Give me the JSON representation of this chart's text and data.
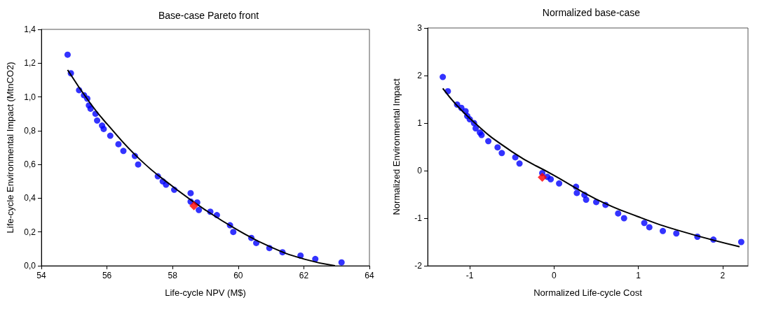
{
  "chart_data": [
    {
      "type": "scatter",
      "title": "Base-case Pareto front",
      "xlabel": "Life-cycle NPV (M$)",
      "ylabel": "Life-cycle Environmental Impact (MtnCO2)",
      "xlim": [
        54,
        64
      ],
      "xticks": [
        54,
        56,
        58,
        60,
        62,
        64
      ],
      "ylim": [
        0,
        1.4
      ],
      "yticks": [
        {
          "value": 0,
          "label": "0,0"
        },
        {
          "value": 0.2,
          "label": "0,2"
        },
        {
          "value": 0.4,
          "label": "0,4"
        },
        {
          "value": 0.6,
          "label": "0,6"
        },
        {
          "value": 0.8,
          "label": "0,8"
        },
        {
          "value": 1.0,
          "label": "1,0"
        },
        {
          "value": 1.2,
          "label": "1,2"
        },
        {
          "value": 1.4,
          "label": "1,4"
        }
      ],
      "grid": false,
      "series": [
        {
          "type": "scatter",
          "marker": "circle",
          "color": "#0000ff",
          "x": [
            54.8,
            54.9,
            55.15,
            55.3,
            55.4,
            55.45,
            55.5,
            55.65,
            55.7,
            55.85,
            55.9,
            56.1,
            56.35,
            56.5,
            56.85,
            56.95,
            57.55,
            57.7,
            57.8,
            58.05,
            58.55,
            58.55,
            58.75,
            58.8,
            59.15,
            59.35,
            59.75,
            59.85,
            60.4,
            60.55,
            60.95,
            61.35,
            61.9,
            62.35,
            63.15
          ],
          "values": [
            1.25,
            1.14,
            1.04,
            1.01,
            0.99,
            0.95,
            0.93,
            0.9,
            0.86,
            0.83,
            0.81,
            0.77,
            0.72,
            0.68,
            0.65,
            0.6,
            0.53,
            0.5,
            0.48,
            0.45,
            0.43,
            0.38,
            0.375,
            0.33,
            0.32,
            0.3,
            0.24,
            0.2,
            0.165,
            0.135,
            0.105,
            0.08,
            0.06,
            0.04,
            0.02
          ]
        },
        {
          "type": "line",
          "marker": "none",
          "color": "#000000",
          "x": [
            54.8,
            55.5,
            56,
            57,
            58,
            59,
            60,
            61,
            62,
            62.95
          ],
          "values": [
            1.16,
            0.96,
            0.84,
            0.63,
            0.47,
            0.33,
            0.21,
            0.11,
            0.04,
            0
          ]
        },
        {
          "type": "scatter",
          "marker": "diamond",
          "color": "#ff0000",
          "x": [
            58.65
          ],
          "values": [
            0.355
          ]
        }
      ]
    },
    {
      "type": "scatter",
      "title": "Normalized base-case",
      "xlabel": "Normalized Life-cycle Cost",
      "ylabel": "Normalized Environmental Impact",
      "xlim": [
        -1.5,
        2.3
      ],
      "xticks": [
        -1,
        0,
        1,
        2
      ],
      "ylim": [
        -2,
        3
      ],
      "yticks": [
        -2,
        -1,
        0,
        1,
        2,
        3
      ],
      "grid": false,
      "series": [
        {
          "type": "scatter",
          "marker": "circle",
          "color": "#0000ff",
          "x": [
            -1.32,
            -1.26,
            -1.15,
            -1.1,
            -1.05,
            -1.03,
            -1.0,
            -0.95,
            -0.93,
            -0.88,
            -0.86,
            -0.78,
            -0.67,
            -0.62,
            -0.46,
            -0.41,
            -0.14,
            -0.08,
            -0.04,
            0.06,
            0.26,
            0.27,
            0.36,
            0.38,
            0.5,
            0.61,
            0.76,
            0.83,
            1.07,
            1.13,
            1.29,
            1.45,
            1.7,
            1.89,
            2.22
          ],
          "values": [
            1.97,
            1.67,
            1.39,
            1.32,
            1.25,
            1.15,
            1.08,
            1.0,
            0.89,
            0.8,
            0.75,
            0.62,
            0.49,
            0.37,
            0.28,
            0.15,
            -0.05,
            -0.13,
            -0.18,
            -0.27,
            -0.34,
            -0.47,
            -0.51,
            -0.61,
            -0.66,
            -0.72,
            -0.9,
            -1.0,
            -1.1,
            -1.19,
            -1.27,
            -1.32,
            -1.39,
            -1.45,
            -1.5
          ]
        },
        {
          "type": "line",
          "marker": "none",
          "color": "#000000",
          "x": [
            -1.32,
            -1,
            -0.5,
            0,
            0.5,
            1,
            1.5,
            2.2
          ],
          "values": [
            1.73,
            1.1,
            0.4,
            -0.1,
            -0.6,
            -0.97,
            -1.27,
            -1.6
          ]
        },
        {
          "type": "scatter",
          "marker": "diamond",
          "color": "#ff0000",
          "x": [
            -0.14
          ],
          "values": [
            -0.14
          ]
        }
      ]
    }
  ]
}
